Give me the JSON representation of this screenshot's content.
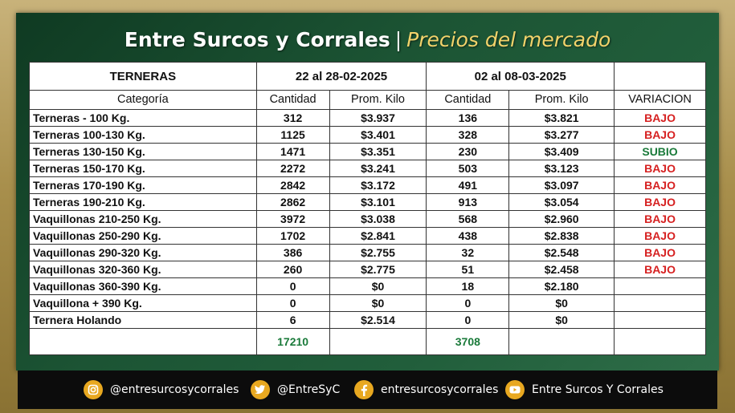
{
  "header": {
    "title": "Entre Surcos y Corrales",
    "separator": "|",
    "subtitle": "Precios del mercado"
  },
  "table": {
    "section_label": "TERNERAS",
    "period1": "22 al 28-02-2025",
    "period2": "02 al 08-03-2025",
    "columns": [
      "Categoría",
      "Cantidad",
      "Prom. Kilo",
      "Cantidad",
      "Prom. Kilo",
      "VARIACION"
    ],
    "rows": [
      {
        "cat": "Terneras - 100 Kg.",
        "c1": "312",
        "p1": "$3.937",
        "c2": "136",
        "p2": "$3.821",
        "var": "BAJO"
      },
      {
        "cat": "Terneras 100-130 Kg.",
        "c1": "1125",
        "p1": "$3.401",
        "c2": "328",
        "p2": "$3.277",
        "var": "BAJO"
      },
      {
        "cat": "Terneras 130-150 Kg.",
        "c1": "1471",
        "p1": "$3.351",
        "c2": "230",
        "p2": "$3.409",
        "var": "SUBIO"
      },
      {
        "cat": "Terneras 150-170 Kg.",
        "c1": "2272",
        "p1": "$3.241",
        "c2": "503",
        "p2": "$3.123",
        "var": "BAJO"
      },
      {
        "cat": "Terneras 170-190 Kg.",
        "c1": "2842",
        "p1": "$3.172",
        "c2": "491",
        "p2": "$3.097",
        "var": "BAJO"
      },
      {
        "cat": "Terneras 190-210 Kg.",
        "c1": "2862",
        "p1": "$3.101",
        "c2": "913",
        "p2": "$3.054",
        "var": "BAJO"
      },
      {
        "cat": "Vaquillonas 210-250 Kg.",
        "c1": "3972",
        "p1": "$3.038",
        "c2": "568",
        "p2": "$2.960",
        "var": "BAJO"
      },
      {
        "cat": "Vaquillonas 250-290 Kg.",
        "c1": "1702",
        "p1": "$2.841",
        "c2": "438",
        "p2": "$2.838",
        "var": "BAJO"
      },
      {
        "cat": "Vaquillonas 290-320 Kg.",
        "c1": "386",
        "p1": "$2.755",
        "c2": "32",
        "p2": "$2.548",
        "var": "BAJO"
      },
      {
        "cat": "Vaquillonas 320-360 Kg.",
        "c1": "260",
        "p1": "$2.775",
        "c2": "51",
        "p2": "$2.458",
        "var": "BAJO"
      },
      {
        "cat": "Vaquillonas 360-390 Kg.",
        "c1": "0",
        "p1": "$0",
        "c2": "18",
        "p2": "$2.180",
        "var": ""
      },
      {
        "cat": "Vaquillona + 390 Kg.",
        "c1": "0",
        "p1": "$0",
        "c2": "0",
        "p2": "$0",
        "var": ""
      },
      {
        "cat": "Ternera Holando",
        "c1": "6",
        "p1": "$2.514",
        "c2": "0",
        "p2": "$0",
        "var": ""
      }
    ],
    "totals": {
      "c1": "17210",
      "c2": "3708"
    }
  },
  "colors": {
    "down": "#d62020",
    "up": "#1a7a3a",
    "total": "#1a7a3a",
    "icon_accent": "#e8a820"
  },
  "footer": {
    "items": [
      {
        "icon": "instagram-icon",
        "label": "@entresurcosycorrales"
      },
      {
        "icon": "twitter-icon",
        "label": "@EntreSyC"
      },
      {
        "icon": "facebook-icon",
        "label": "entresurcosycorrales"
      },
      {
        "icon": "youtube-icon",
        "label": "Entre Surcos Y Corrales"
      }
    ]
  }
}
